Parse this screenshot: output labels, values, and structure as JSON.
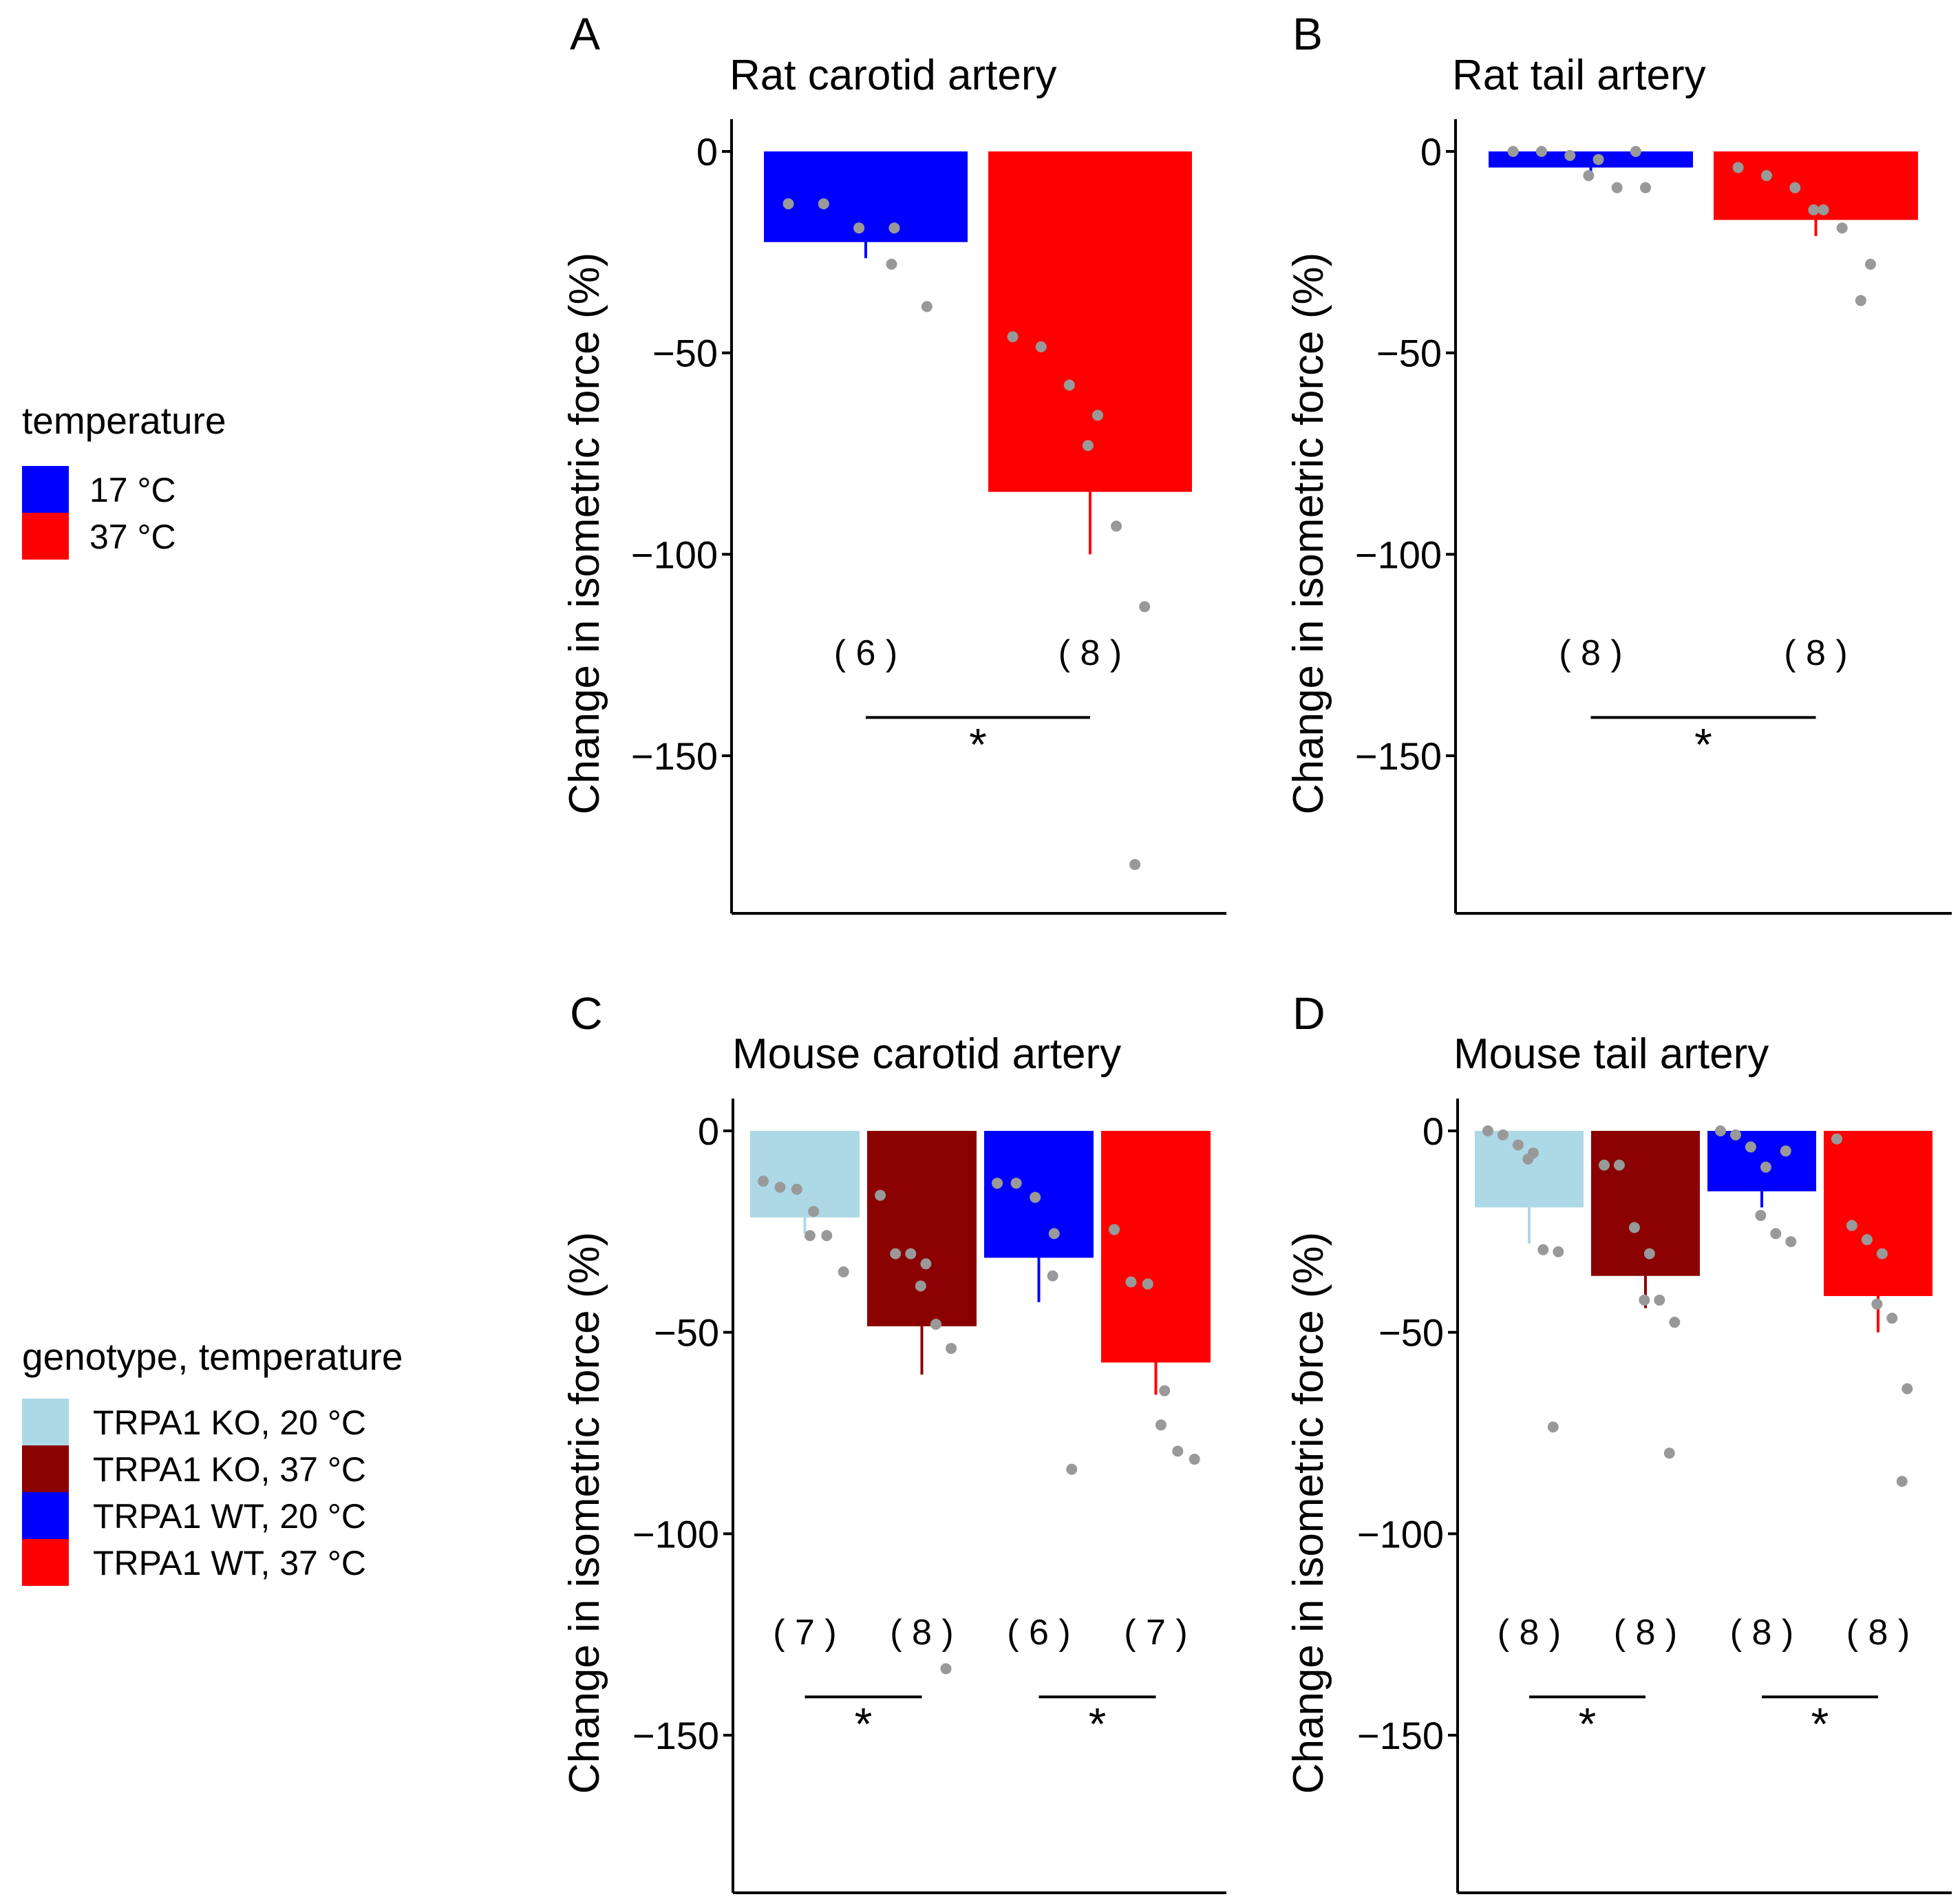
{
  "legends": [
    {
      "title": "temperature",
      "entries": [
        {
          "label": "17 °C",
          "color": "#0000ff"
        },
        {
          "label": "37 °C",
          "color": "#ff0000"
        }
      ]
    },
    {
      "title": "genotype, temperature",
      "entries": [
        {
          "label": "TRPA1 KO, 20 °C",
          "color": "#add8e6"
        },
        {
          "label": "TRPA1 KO, 37 °C",
          "color": "#8b0000"
        },
        {
          "label": "TRPA1 WT, 20 °C",
          "color": "#0000ff"
        },
        {
          "label": "TRPA1 WT, 37 °C",
          "color": "#ff0000"
        }
      ]
    }
  ],
  "chart_data": [
    {
      "panel": "A",
      "type": "bar",
      "title": "Rat carotid artery",
      "ylabel": "Change in isometric force (%)",
      "ylim": [
        -190,
        8
      ],
      "yticks": [
        0,
        -50,
        -100,
        -150
      ],
      "series": [
        {
          "name": "17 °C",
          "color": "#0000ff",
          "value": -22.5,
          "error": 4,
          "n_label": "( 6 )",
          "points": [
            -13,
            -13,
            -19,
            -19,
            -28,
            -38.5
          ]
        },
        {
          "name": "37 °C",
          "color": "#ff0000",
          "value": -84.5,
          "error": 15.5,
          "n_label": "( 8 )",
          "points": [
            -46,
            -48.5,
            -58,
            -65.5,
            -73,
            -93,
            -113,
            -177
          ]
        }
      ],
      "significance": [
        {
          "from": 0,
          "to": 1,
          "label": "*"
        }
      ]
    },
    {
      "panel": "B",
      "type": "bar",
      "title": "Rat tail artery",
      "ylabel": "Change in isometric force (%)",
      "ylim": [
        -190,
        8
      ],
      "yticks": [
        0,
        -50,
        -100,
        -150
      ],
      "series": [
        {
          "name": "17 °C",
          "color": "#0000ff",
          "value": -4,
          "error": 1.5,
          "n_label": "( 8 )",
          "points": [
            0,
            0,
            -1,
            -2,
            -6,
            -9,
            -9,
            0
          ]
        },
        {
          "name": "37 °C",
          "color": "#ff0000",
          "value": -17,
          "error": 4,
          "n_label": "( 8 )",
          "points": [
            -4,
            -6,
            -9,
            -14.5,
            -14.5,
            -19,
            -28,
            -37
          ]
        }
      ],
      "significance": [
        {
          "from": 0,
          "to": 1,
          "label": "*"
        }
      ]
    },
    {
      "panel": "C",
      "type": "bar",
      "title": "Mouse carotid artery",
      "ylabel": "Change in isometric force (%)",
      "ylim": [
        -190,
        8
      ],
      "yticks": [
        0,
        -50,
        -100,
        -150
      ],
      "series": [
        {
          "name": "TRPA1 KO, 20 °C",
          "color": "#add8e6",
          "value": -21.5,
          "error": 4,
          "n_label": "( 7 )",
          "points": [
            -12.5,
            -14,
            -14.5,
            -20,
            -26,
            -26,
            -35
          ]
        },
        {
          "name": "TRPA1 KO, 37 °C",
          "color": "#8b0000",
          "value": -48.5,
          "error": 12,
          "n_label": "( 8 )",
          "points": [
            -16,
            -30.5,
            -30.5,
            -33,
            -38.5,
            -48,
            -54,
            -133.5
          ]
        },
        {
          "name": "TRPA1 WT, 20 °C",
          "color": "#0000ff",
          "value": -31.5,
          "error": 11,
          "n_label": "( 6 )",
          "points": [
            -13,
            -13,
            -16.5,
            -25.5,
            -36,
            -84
          ]
        },
        {
          "name": "TRPA1 WT, 37 °C",
          "color": "#ff0000",
          "value": -57.5,
          "error": 8,
          "n_label": "( 7 )",
          "points": [
            -24.5,
            -37.5,
            -38,
            -64.5,
            -73,
            -79.5,
            -81.5
          ]
        }
      ],
      "significance": [
        {
          "from": 0,
          "to": 1,
          "label": "*"
        },
        {
          "from": 2,
          "to": 3,
          "label": "*"
        }
      ]
    },
    {
      "panel": "D",
      "type": "bar",
      "title": "Mouse tail artery",
      "ylabel": "Change in isometric force (%)",
      "ylim": [
        -190,
        8
      ],
      "yticks": [
        0,
        -50,
        -100,
        -150
      ],
      "series": [
        {
          "name": "TRPA1 KO, 20 °C",
          "color": "#add8e6",
          "value": -19,
          "error": 9,
          "n_label": "( 8 )",
          "points": [
            0,
            -1,
            -3.5,
            -5.5,
            -7,
            -29.5,
            -30,
            -73.5
          ]
        },
        {
          "name": "TRPA1 KO, 37 °C",
          "color": "#8b0000",
          "value": -36,
          "error": 8,
          "n_label": "( 8 )",
          "points": [
            -8.5,
            -8.5,
            -24,
            -30.5,
            -42,
            -42,
            -47.5,
            -80
          ]
        },
        {
          "name": "TRPA1 WT, 20 °C",
          "color": "#0000ff",
          "value": -15,
          "error": 4,
          "n_label": "( 8 )",
          "points": [
            0,
            -1,
            -4,
            -9,
            -21,
            -25.5,
            -27.5,
            -5
          ]
        },
        {
          "name": "TRPA1 WT, 37 °C",
          "color": "#ff0000",
          "value": -41,
          "error": 9,
          "n_label": "( 8 )",
          "points": [
            -2,
            -23.5,
            -27,
            -30.5,
            -43,
            -46.5,
            -64,
            -87
          ]
        }
      ],
      "significance": [
        {
          "from": 0,
          "to": 1,
          "label": "*"
        },
        {
          "from": 2,
          "to": 3,
          "label": "*"
        }
      ]
    }
  ]
}
